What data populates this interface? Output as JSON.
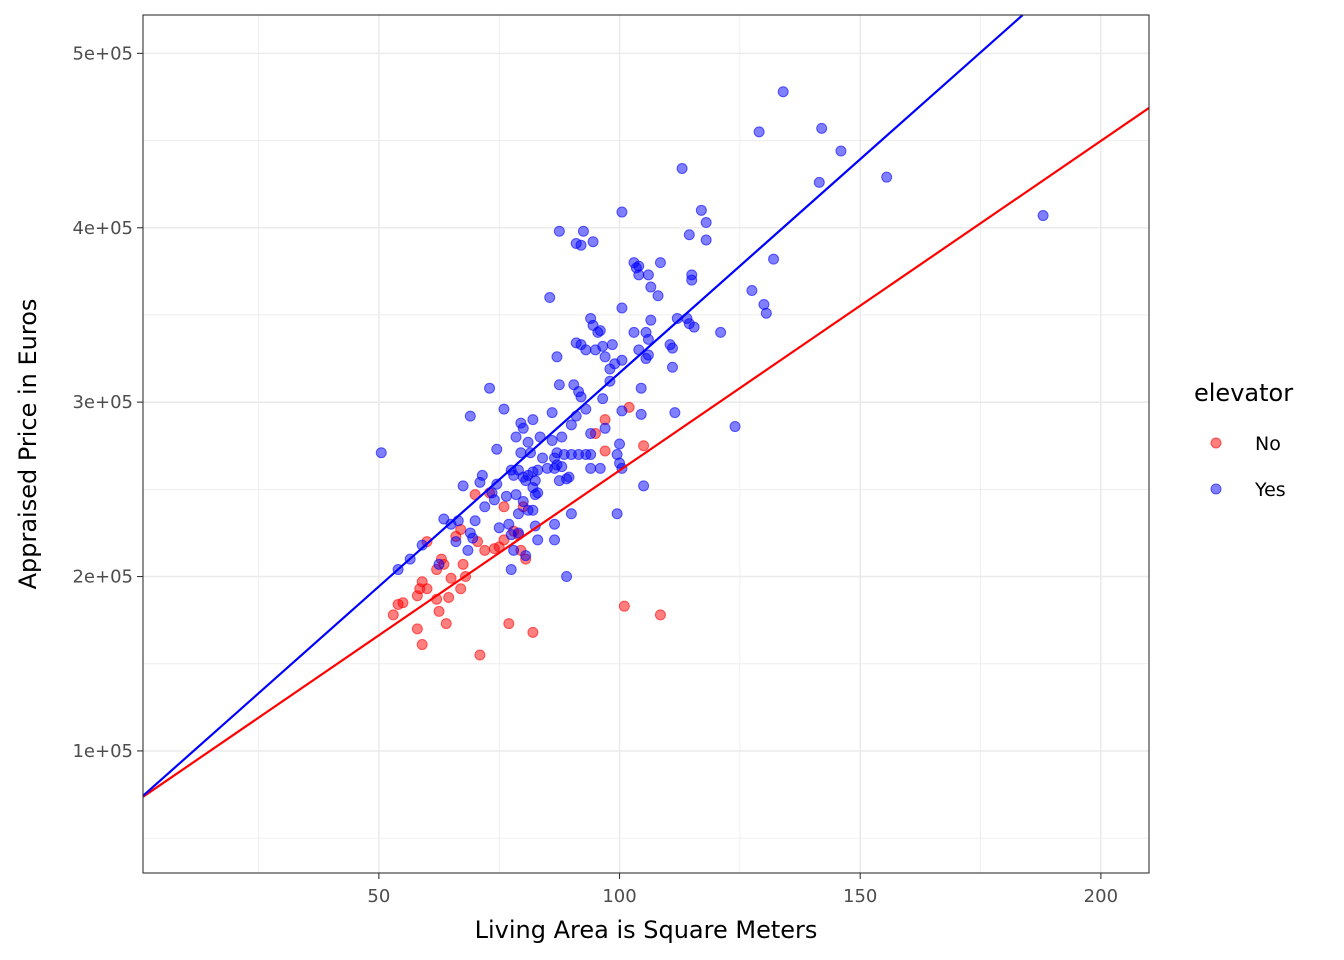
{
  "chart_data": {
    "type": "scatter",
    "title": "",
    "xlabel": "Living Area is Square Meters",
    "ylabel": "Appraised Price in Euros",
    "xlim": [
      1,
      210
    ],
    "ylim": [
      30000,
      522000
    ],
    "x_ticks": [
      50,
      100,
      150,
      200
    ],
    "x_tick_labels": [
      "50",
      "100",
      "150",
      "200"
    ],
    "y_ticks": [
      100000,
      200000,
      300000,
      400000,
      500000
    ],
    "y_tick_labels": [
      "1e+05",
      "2e+05",
      "3e+05",
      "4e+05",
      "5e+05"
    ],
    "grid": true,
    "legend": {
      "title": "elevator",
      "placement": "right"
    },
    "series": [
      {
        "name": "No",
        "color": "#ff0000",
        "fit_line": {
          "intercept": 71800,
          "slope": 1890
        },
        "points": [
          [
            53,
            178000
          ],
          [
            54,
            184000
          ],
          [
            55,
            185000
          ],
          [
            58,
            170000
          ],
          [
            58,
            189000
          ],
          [
            58.5,
            193000
          ],
          [
            59,
            197000
          ],
          [
            59,
            161000
          ],
          [
            60,
            193000
          ],
          [
            60,
            220000
          ],
          [
            62,
            187000
          ],
          [
            62,
            204000
          ],
          [
            62.5,
            180000
          ],
          [
            63,
            210000
          ],
          [
            63.5,
            207000
          ],
          [
            64,
            173000
          ],
          [
            64.5,
            188000
          ],
          [
            65,
            199000
          ],
          [
            66,
            223000
          ],
          [
            67,
            193000
          ],
          [
            67,
            227000
          ],
          [
            67.5,
            207000
          ],
          [
            68,
            200000
          ],
          [
            70,
            247000
          ],
          [
            70.5,
            220000
          ],
          [
            71,
            155000
          ],
          [
            72,
            215000
          ],
          [
            73,
            248000
          ],
          [
            74,
            216000
          ],
          [
            75,
            217000
          ],
          [
            76,
            240000
          ],
          [
            76,
            221000
          ],
          [
            77,
            173000
          ],
          [
            78,
            226000
          ],
          [
            79,
            224000
          ],
          [
            79.5,
            215000
          ],
          [
            80,
            240000
          ],
          [
            80.5,
            210000
          ],
          [
            82,
            168000
          ],
          [
            95,
            282000
          ],
          [
            97,
            290000
          ],
          [
            97,
            272000
          ],
          [
            101,
            183000
          ],
          [
            102,
            297000
          ],
          [
            105,
            275000
          ],
          [
            108.5,
            178000
          ]
        ]
      },
      {
        "name": "Yes",
        "color": "#0000ff",
        "fit_line": {
          "intercept": 71800,
          "slope": 2450
        },
        "points": [
          [
            50.5,
            271000
          ],
          [
            54,
            204000
          ],
          [
            56.5,
            210000
          ],
          [
            59,
            218000
          ],
          [
            62.5,
            207000
          ],
          [
            63.5,
            233000
          ],
          [
            65,
            230000
          ],
          [
            66,
            220000
          ],
          [
            66.5,
            232000
          ],
          [
            67.5,
            252000
          ],
          [
            68.5,
            215000
          ],
          [
            69,
            292000
          ],
          [
            69,
            225000
          ],
          [
            69.5,
            222000
          ],
          [
            70,
            232000
          ],
          [
            71,
            254000
          ],
          [
            71.5,
            258000
          ],
          [
            72,
            240000
          ],
          [
            73,
            308000
          ],
          [
            73.5,
            248000
          ],
          [
            74,
            244000
          ],
          [
            74.5,
            253000
          ],
          [
            74.5,
            273000
          ],
          [
            75,
            228000
          ],
          [
            76,
            296000
          ],
          [
            76.5,
            246000
          ],
          [
            77,
            230000
          ],
          [
            77.5,
            204000
          ],
          [
            77.5,
            224000
          ],
          [
            77.5,
            261000
          ],
          [
            78,
            215000
          ],
          [
            78,
            258000
          ],
          [
            78.5,
            280000
          ],
          [
            78.5,
            247000
          ],
          [
            79,
            236000
          ],
          [
            79,
            261000
          ],
          [
            79,
            225000
          ],
          [
            79.5,
            288000
          ],
          [
            79.5,
            271000
          ],
          [
            80,
            285000
          ],
          [
            80,
            257000
          ],
          [
            80,
            243000
          ],
          [
            80.5,
            255000
          ],
          [
            80.5,
            212000
          ],
          [
            81,
            277000
          ],
          [
            81,
            238000
          ],
          [
            81,
            258000
          ],
          [
            81.5,
            271000
          ],
          [
            82,
            251000
          ],
          [
            82,
            260000
          ],
          [
            82,
            238000
          ],
          [
            82,
            290000
          ],
          [
            82.5,
            229000
          ],
          [
            82.5,
            255000
          ],
          [
            82.5,
            247000
          ],
          [
            83,
            248000
          ],
          [
            83,
            261000
          ],
          [
            83,
            221000
          ],
          [
            83.5,
            280000
          ],
          [
            84,
            268000
          ],
          [
            85,
            262000
          ],
          [
            85.5,
            360000
          ],
          [
            86,
            278000
          ],
          [
            86,
            294000
          ],
          [
            86.5,
            268000
          ],
          [
            86.5,
            221000
          ],
          [
            86.5,
            230000
          ],
          [
            86.5,
            262000
          ],
          [
            87,
            326000
          ],
          [
            87,
            271000
          ],
          [
            87,
            264000
          ],
          [
            87.5,
            398000
          ],
          [
            87.5,
            310000
          ],
          [
            87.5,
            255000
          ],
          [
            88,
            280000
          ],
          [
            88,
            263000
          ],
          [
            88.5,
            270000
          ],
          [
            89,
            200000
          ],
          [
            89,
            256000
          ],
          [
            89.5,
            257000
          ],
          [
            90,
            236000
          ],
          [
            90,
            270000
          ],
          [
            90,
            287000
          ],
          [
            90.5,
            310000
          ],
          [
            91,
            292000
          ],
          [
            91,
            391000
          ],
          [
            91,
            334000
          ],
          [
            91.5,
            306000
          ],
          [
            91.5,
            270000
          ],
          [
            92,
            303000
          ],
          [
            92,
            333000
          ],
          [
            92,
            390000
          ],
          [
            92.5,
            398000
          ],
          [
            93,
            296000
          ],
          [
            93,
            270000
          ],
          [
            93,
            330000
          ],
          [
            94,
            348000
          ],
          [
            94,
            282000
          ],
          [
            94,
            270000
          ],
          [
            94,
            262000
          ],
          [
            94.5,
            392000
          ],
          [
            94.5,
            344000
          ],
          [
            95,
            330000
          ],
          [
            95.5,
            340000
          ],
          [
            96,
            341000
          ],
          [
            96,
            262000
          ],
          [
            96.5,
            332000
          ],
          [
            96.5,
            302000
          ],
          [
            97,
            285000
          ],
          [
            97,
            326000
          ],
          [
            98,
            312000
          ],
          [
            98,
            319000
          ],
          [
            98.5,
            333000
          ],
          [
            99,
            322000
          ],
          [
            99.5,
            270000
          ],
          [
            99.5,
            236000
          ],
          [
            100,
            276000
          ],
          [
            100,
            265000
          ],
          [
            100.5,
            409000
          ],
          [
            100.5,
            354000
          ],
          [
            100.5,
            324000
          ],
          [
            100.5,
            295000
          ],
          [
            100.5,
            262000
          ],
          [
            103,
            380000
          ],
          [
            103,
            340000
          ],
          [
            103.5,
            377000
          ],
          [
            104,
            373000
          ],
          [
            104,
            330000
          ],
          [
            104,
            378000
          ],
          [
            104.5,
            308000
          ],
          [
            104.5,
            293000
          ],
          [
            105,
            252000
          ],
          [
            105.5,
            340000
          ],
          [
            105.5,
            325000
          ],
          [
            106,
            327000
          ],
          [
            106,
            336000
          ],
          [
            106,
            373000
          ],
          [
            106.5,
            366000
          ],
          [
            106.5,
            347000
          ],
          [
            108,
            361000
          ],
          [
            108.5,
            380000
          ],
          [
            110.5,
            333000
          ],
          [
            111,
            320000
          ],
          [
            111,
            331000
          ],
          [
            111.5,
            294000
          ],
          [
            112,
            348000
          ],
          [
            113,
            434000
          ],
          [
            114,
            348000
          ],
          [
            114.5,
            396000
          ],
          [
            114.5,
            345000
          ],
          [
            115,
            370000
          ],
          [
            115,
            373000
          ],
          [
            115.5,
            343000
          ],
          [
            117,
            410000
          ],
          [
            118,
            393000
          ],
          [
            118,
            403000
          ],
          [
            121,
            340000
          ],
          [
            124,
            286000
          ],
          [
            127.5,
            364000
          ],
          [
            129,
            455000
          ],
          [
            130,
            356000
          ],
          [
            130.5,
            351000
          ],
          [
            132,
            382000
          ],
          [
            134,
            478000
          ],
          [
            141.5,
            426000
          ],
          [
            142,
            457000
          ],
          [
            146,
            444000
          ],
          [
            155.5,
            429000
          ],
          [
            188,
            407000
          ]
        ]
      }
    ]
  }
}
